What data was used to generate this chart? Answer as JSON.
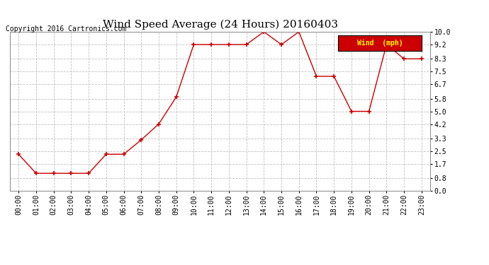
{
  "title": "Wind Speed Average (24 Hours) 20160403",
  "copyright": "Copyright 2016 Cartronics.com",
  "legend_label": "Wind  (mph)",
  "x_labels": [
    "00:00",
    "01:00",
    "02:00",
    "03:00",
    "04:00",
    "05:00",
    "06:00",
    "07:00",
    "08:00",
    "09:00",
    "10:00",
    "11:00",
    "12:00",
    "13:00",
    "14:00",
    "15:00",
    "16:00",
    "17:00",
    "18:00",
    "19:00",
    "20:00",
    "21:00",
    "22:00",
    "23:00"
  ],
  "y_values": [
    2.3,
    1.1,
    1.1,
    1.1,
    1.1,
    2.3,
    2.3,
    3.2,
    4.2,
    5.9,
    9.2,
    9.2,
    9.2,
    9.2,
    10.0,
    9.2,
    10.0,
    7.2,
    7.2,
    5.0,
    5.0,
    9.2,
    8.3,
    8.3
  ],
  "y_ticks": [
    0.0,
    0.8,
    1.7,
    2.5,
    3.3,
    4.2,
    5.0,
    5.8,
    6.7,
    7.5,
    8.3,
    9.2,
    10.0
  ],
  "line_color": "#cc0000",
  "marker_color": "#cc0000",
  "bg_color": "#ffffff",
  "grid_color": "#c0c0c0",
  "legend_bg": "#cc0000",
  "legend_text_color": "#ffff00",
  "title_fontsize": 11,
  "copyright_fontsize": 7,
  "tick_fontsize": 7,
  "ylim": [
    0.0,
    10.0
  ]
}
